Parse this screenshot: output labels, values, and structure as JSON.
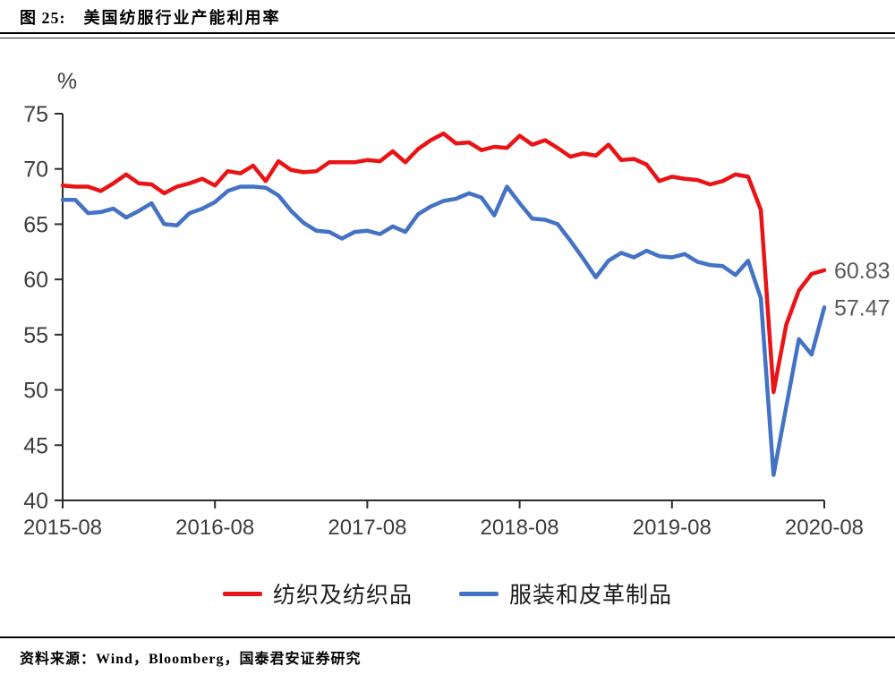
{
  "figure": {
    "label": "图 25:",
    "title": "美国纺服行业产能利用率"
  },
  "source_line": "资料来源：Wind，Bloomberg，国泰君安证券研究",
  "chart_data": {
    "type": "line",
    "title": "美国纺服行业产能利用率",
    "unit_label": "%",
    "frequency": "monthly",
    "x_tick_labels": [
      "2015-08",
      "2016-08",
      "2017-08",
      "2018-08",
      "2019-08",
      "2020-08"
    ],
    "x_tick_month_indices": [
      0,
      12,
      24,
      36,
      48,
      60
    ],
    "y_ticks": [
      75,
      70,
      65,
      60,
      55,
      50,
      45,
      40
    ],
    "ylim": [
      40,
      75
    ],
    "grid": false,
    "legend_position": "bottom",
    "axis_color": "#2b2b2b",
    "tick_label_color": "#3d3d3d",
    "end_label_color": "#595959",
    "series": [
      {
        "name": "纺织及纺织品",
        "color": "#e81416",
        "end_label": "60.83",
        "values": [
          68.5,
          68.4,
          68.4,
          68.0,
          68.7,
          69.5,
          68.7,
          68.6,
          67.8,
          68.4,
          68.7,
          69.1,
          68.5,
          69.8,
          69.6,
          70.3,
          68.9,
          70.7,
          69.9,
          69.7,
          69.8,
          70.6,
          70.6,
          70.6,
          70.8,
          70.7,
          71.6,
          70.6,
          71.8,
          72.6,
          73.2,
          72.3,
          72.4,
          71.7,
          72.0,
          71.9,
          73.0,
          72.2,
          72.6,
          71.9,
          71.1,
          71.4,
          71.2,
          72.2,
          70.8,
          70.9,
          70.4,
          68.9,
          69.3,
          69.1,
          69.0,
          68.6,
          68.9,
          69.5,
          69.3,
          66.3,
          49.8,
          55.9,
          59.0,
          60.5,
          60.83
        ]
      },
      {
        "name": "服装和皮革制品",
        "color": "#4472c4",
        "end_label": "57.47",
        "values": [
          67.2,
          67.2,
          66.0,
          66.1,
          66.4,
          65.6,
          66.2,
          66.9,
          65.0,
          64.9,
          66.0,
          66.4,
          67.0,
          68.0,
          68.4,
          68.4,
          68.3,
          67.6,
          66.2,
          65.1,
          64.4,
          64.3,
          63.7,
          64.3,
          64.4,
          64.1,
          64.8,
          64.3,
          65.9,
          66.6,
          67.1,
          67.3,
          67.8,
          67.4,
          65.8,
          68.4,
          66.9,
          65.5,
          65.4,
          65.0,
          63.5,
          61.9,
          60.2,
          61.7,
          62.4,
          62.0,
          62.6,
          62.1,
          62.0,
          62.3,
          61.6,
          61.3,
          61.2,
          60.4,
          61.7,
          58.3,
          42.3,
          48.5,
          54.6,
          53.2,
          57.47
        ]
      }
    ]
  }
}
